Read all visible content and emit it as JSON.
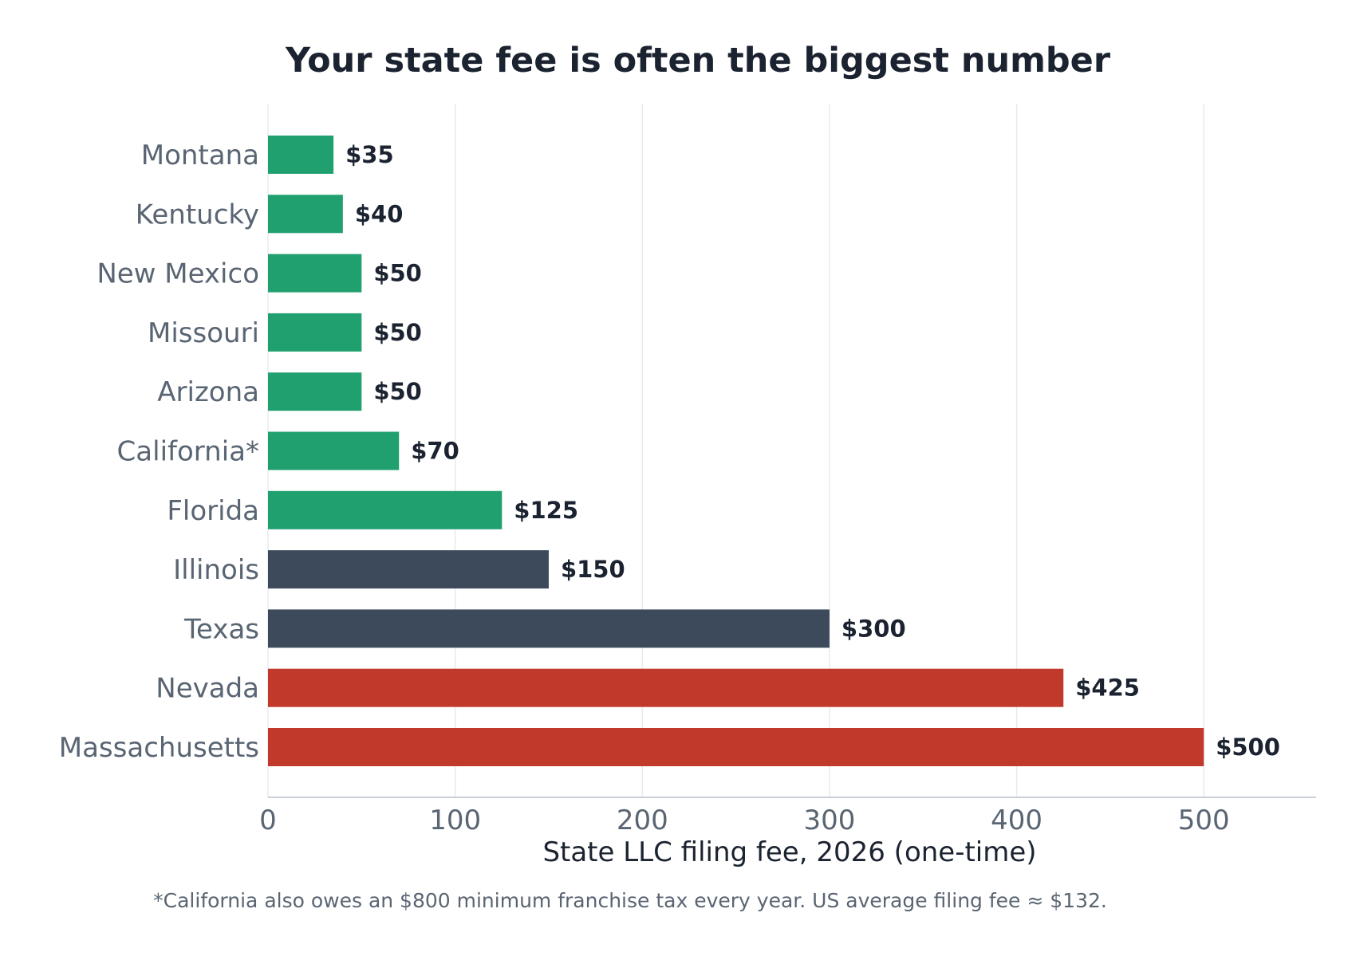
{
  "chart_data": {
    "type": "bar",
    "orientation": "horizontal",
    "title": "Your state fee is often the biggest number",
    "xlabel": "State LLC filing fee, 2026 (one-time)",
    "ylabel": "",
    "xlim": [
      0,
      560
    ],
    "xticks": [
      0,
      100,
      200,
      300,
      400,
      500
    ],
    "grid": true,
    "categories": [
      "Montana",
      "Kentucky",
      "New Mexico",
      "Missouri",
      "Arizona",
      "California*",
      "Florida",
      "Illinois",
      "Texas",
      "Nevada",
      "Massachusetts"
    ],
    "values": [
      35,
      40,
      50,
      50,
      50,
      70,
      125,
      150,
      300,
      425,
      500
    ],
    "value_labels": [
      "$35",
      "$40",
      "$50",
      "$50",
      "$50",
      "$70",
      "$125",
      "$150",
      "$300",
      "$425",
      "$500"
    ],
    "bar_colors": [
      "#21a06f",
      "#21a06f",
      "#21a06f",
      "#21a06f",
      "#21a06f",
      "#21a06f",
      "#21a06f",
      "#3c4a5b",
      "#3c4a5b",
      "#c1392b",
      "#c1392b"
    ],
    "footnote": "*California also owes an $800 minimum franchise tax every year. US average filing fee ≈ $132."
  },
  "colors": {
    "low": "#21a06f",
    "mid": "#3c4a5b",
    "high": "#c1392b",
    "text_dark": "#1b2330",
    "text_muted": "#5a6573"
  }
}
